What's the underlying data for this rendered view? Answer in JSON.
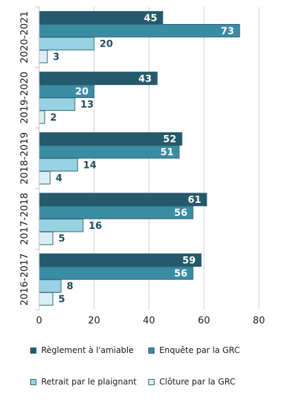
{
  "chart_data": {
    "type": "bar",
    "orientation": "horizontal",
    "categories": [
      "2020-2021",
      "2019-2020",
      "2018-2019",
      "2017-2018",
      "2016-2017"
    ],
    "series": [
      {
        "name": "Règlement à l'amiable",
        "values": [
          45,
          43,
          52,
          61,
          59
        ],
        "color": "#245a6b",
        "label_color": "#ffffff"
      },
      {
        "name": "Enquête par la GRC",
        "values": [
          73,
          20,
          51,
          56,
          56
        ],
        "color": "#3a8ca3",
        "label_color": "#ffffff"
      },
      {
        "name": "Retrait par le plaignant",
        "values": [
          20,
          13,
          14,
          16,
          8
        ],
        "color": "#98d1e1",
        "label_color": "#1f4e5f"
      },
      {
        "name": "Clôture par la GRC",
        "values": [
          3,
          2,
          4,
          5,
          5
        ],
        "color": "#daeef5",
        "label_color": "#1f4e5f"
      }
    ],
    "xlim": [
      0,
      80
    ],
    "x_ticks": [
      "0",
      "20",
      "40",
      "60",
      "80"
    ],
    "grid": true,
    "legend_position": "bottom"
  }
}
